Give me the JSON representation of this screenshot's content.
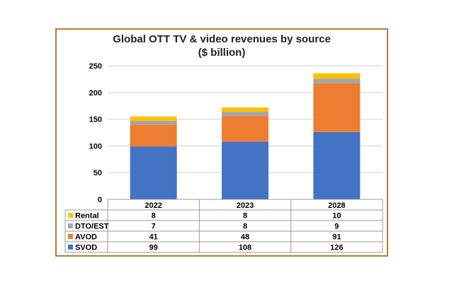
{
  "chart_data": {
    "type": "bar",
    "stacked": true,
    "title": "Global OTT TV & video revenues by source",
    "subtitle": "($ billion)",
    "categories": [
      "2022",
      "2023",
      "2028"
    ],
    "series": [
      {
        "name": "SVOD",
        "values": [
          99,
          108,
          126
        ],
        "color": "#4472c4"
      },
      {
        "name": "AVOD",
        "values": [
          41,
          48,
          91
        ],
        "color": "#ed7d31"
      },
      {
        "name": "DTO/EST",
        "values": [
          7,
          8,
          9
        ],
        "color": "#a5a5a5"
      },
      {
        "name": "Rental",
        "values": [
          8,
          8,
          10
        ],
        "color": "#ffc000"
      }
    ],
    "table_order": [
      "Rental",
      "DTO/EST",
      "AVOD",
      "SVOD"
    ],
    "ylim": [
      0,
      250
    ],
    "yticks": [
      0,
      50,
      100,
      150,
      200,
      250
    ],
    "grid": true,
    "legend": "data-table"
  }
}
